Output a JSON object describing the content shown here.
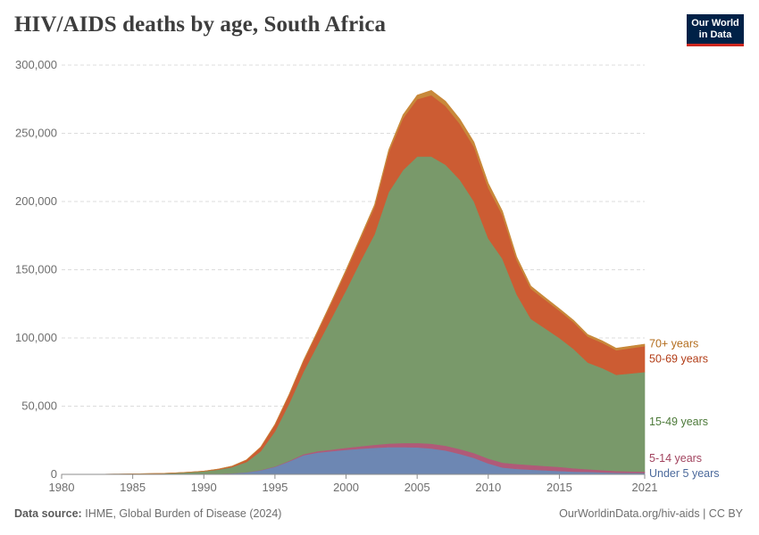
{
  "header": {
    "title": "HIV/AIDS deaths by age, South Africa",
    "logo_line1": "Our World",
    "logo_line2": "in Data"
  },
  "footer": {
    "source_label": "Data source:",
    "source_text": "IHME, Global Burden of Disease (2024)",
    "credit": "OurWorldinData.org/hiv-aids | CC BY"
  },
  "chart_data": {
    "type": "area",
    "stacked": true,
    "title": "HIV/AIDS deaths by age, South Africa",
    "xlabel": "",
    "ylabel": "",
    "xlim": [
      1980,
      2021
    ],
    "ylim": [
      0,
      300000
    ],
    "x_ticks": [
      1980,
      1985,
      1990,
      1995,
      2000,
      2005,
      2010,
      2015,
      2021
    ],
    "y_ticks": [
      0,
      50000,
      100000,
      150000,
      200000,
      250000,
      300000
    ],
    "y_tick_labels": [
      "0",
      "50,000",
      "100,000",
      "150,000",
      "200,000",
      "250,000",
      "300,000"
    ],
    "grid": "horizontal dashed",
    "legend": "inline labels at right end",
    "x": [
      1980,
      1981,
      1982,
      1983,
      1984,
      1985,
      1986,
      1987,
      1988,
      1989,
      1990,
      1991,
      1992,
      1993,
      1994,
      1995,
      1996,
      1997,
      1998,
      1999,
      2000,
      2001,
      2002,
      2003,
      2004,
      2005,
      2006,
      2007,
      2008,
      2009,
      2010,
      2011,
      2012,
      2013,
      2014,
      2015,
      2016,
      2017,
      2018,
      2019,
      2020,
      2021
    ],
    "series": [
      {
        "name": "Under 5 years",
        "color": "#6d87b3",
        "values": [
          0,
          0,
          0,
          0,
          0,
          0,
          0,
          0,
          50,
          100,
          200,
          400,
          800,
          1500,
          3000,
          5500,
          9500,
          14000,
          16000,
          17000,
          18000,
          18800,
          19500,
          20000,
          20000,
          19800,
          19000,
          17500,
          15000,
          12000,
          8000,
          5000,
          4000,
          3500,
          3000,
          2500,
          2000,
          1800,
          1500,
          1200,
          1100,
          1000
        ]
      },
      {
        "name": "5-14 years",
        "color": "#b05a78",
        "values": [
          0,
          0,
          0,
          0,
          0,
          0,
          0,
          0,
          0,
          0,
          20,
          50,
          80,
          100,
          200,
          300,
          500,
          800,
          1000,
          1200,
          1500,
          1800,
          2200,
          2600,
          3000,
          3300,
          3500,
          3500,
          3600,
          3600,
          3600,
          3600,
          3600,
          3400,
          3200,
          3000,
          2500,
          2000,
          1600,
          1300,
          1100,
          1000
        ]
      },
      {
        "name": "15-49 years",
        "color": "#79996a",
        "values": [
          0,
          50,
          100,
          150,
          250,
          400,
          500,
          700,
          1000,
          1500,
          2000,
          3000,
          4500,
          7500,
          13800,
          25700,
          42000,
          60200,
          78000,
          96800,
          115500,
          135400,
          154300,
          184400,
          200000,
          209900,
          210500,
          206000,
          197400,
          184400,
          161400,
          149400,
          124400,
          107100,
          100800,
          94500,
          87500,
          78200,
          74900,
          70500,
          71800,
          73000
        ]
      },
      {
        "name": "50-69 years",
        "color": "#cc5c33",
        "values": [
          0,
          0,
          0,
          0,
          0,
          0,
          0,
          0,
          50,
          100,
          200,
          400,
          700,
          1500,
          3000,
          5000,
          6500,
          8000,
          9500,
          11500,
          14000,
          16500,
          20000,
          29000,
          38000,
          42000,
          45000,
          43000,
          41000,
          40000,
          37000,
          32000,
          25000,
          22000,
          21000,
          20000,
          19500,
          19000,
          18500,
          18000,
          18500,
          19000
        ]
      },
      {
        "name": "70+ years",
        "color": "#c8883a",
        "values": [
          0,
          0,
          0,
          0,
          0,
          0,
          0,
          0,
          0,
          0,
          20,
          50,
          80,
          100,
          150,
          250,
          350,
          500,
          700,
          900,
          1100,
          1300,
          1600,
          2000,
          2500,
          3000,
          3500,
          3500,
          3500,
          3500,
          3500,
          3000,
          2500,
          2000,
          1700,
          1500,
          1500,
          1500,
          1500,
          1500,
          1500,
          1500
        ]
      }
    ]
  }
}
